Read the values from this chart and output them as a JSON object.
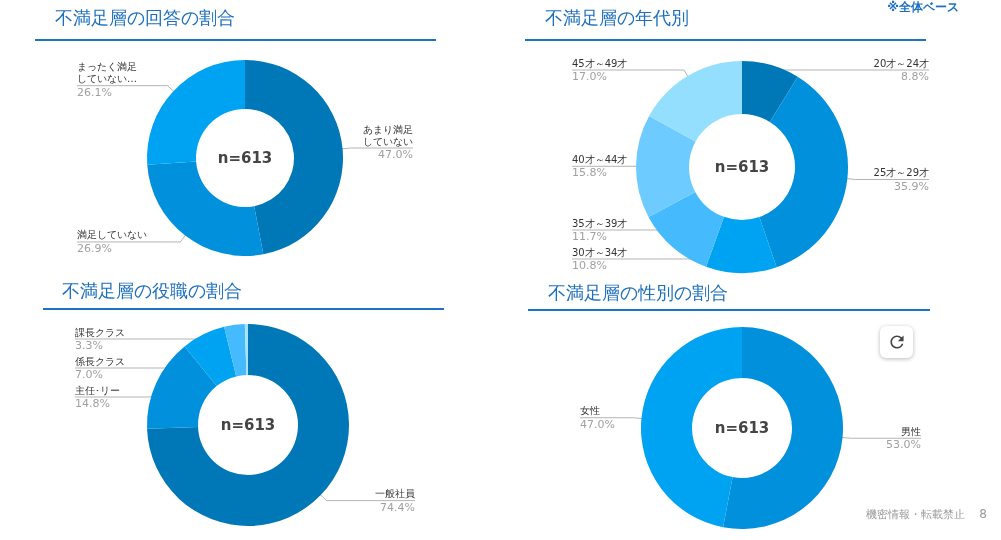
{
  "chart_data": [
    {
      "type": "donut",
      "title": "不満足層の回答の割合",
      "categories": [
        "あまり満足していない",
        "満足していない",
        "まったく満足していない…"
      ],
      "values": [
        47.0,
        26.9,
        26.1
      ],
      "value_labels": [
        "47.0%",
        "26.9%",
        "26.1%"
      ],
      "colors": [
        "#0077b6",
        "#0090dc",
        "#00a2f2"
      ],
      "annotations": [
        "n=613"
      ]
    },
    {
      "type": "donut",
      "title": "不満足層の年代別",
      "categories": [
        "20才～24才",
        "25才～29才",
        "30才～34才",
        "35才～39才",
        "40才～44才",
        "45才～49才"
      ],
      "values": [
        8.8,
        35.9,
        10.8,
        11.7,
        15.8,
        17.0
      ],
      "value_labels": [
        "8.8%",
        "35.9%",
        "10.8%",
        "11.7%",
        "15.8%",
        "17.0%"
      ],
      "colors": [
        "#0077b6",
        "#0090dc",
        "#00a2f2",
        "#45bbfe",
        "#6ecbff",
        "#94dffe"
      ],
      "annotations": [
        "n=613",
        "※全体ベース"
      ]
    },
    {
      "type": "donut",
      "title": "不満足層の役職の割合",
      "categories": [
        "一般社員",
        "主任･リー",
        "係長クラス",
        "課長クラス",
        null
      ],
      "values": [
        74.4,
        14.8,
        7.0,
        3.3,
        0.5
      ],
      "value_labels": [
        "74.4%",
        "14.8%",
        "7.0%",
        "3.3%",
        null
      ],
      "colors": [
        "#0077b6",
        "#0090dc",
        "#00a2f2",
        "#45bbfe",
        "#a8e2ff"
      ],
      "annotations": [
        "n=613"
      ]
    },
    {
      "type": "donut",
      "title": "不満足層の性別の割合",
      "categories": [
        "男性",
        "女性"
      ],
      "values": [
        53.0,
        47.0
      ],
      "value_labels": [
        "53.0%",
        "47.0%"
      ],
      "colors": [
        "#0090dc",
        "#00a2f2"
      ],
      "annotations": [
        "n=613",
        "機密情報・転載禁止",
        "8"
      ]
    }
  ]
}
